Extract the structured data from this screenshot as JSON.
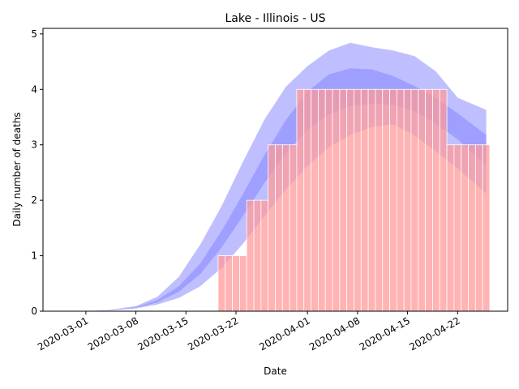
{
  "chart_data": {
    "type": "bar",
    "title": "Lake - Illinois - US",
    "xlabel": "Date",
    "ylabel": "Daily number of deaths",
    "x_ticks": [
      "2020-03-01",
      "2020-03-08",
      "2020-03-15",
      "2020-03-22",
      "2020-04-01",
      "2020-04-08",
      "2020-04-15",
      "2020-04-22"
    ],
    "x_range": [
      "2020-02-24",
      "2020-04-29"
    ],
    "y_ticks": [
      "0",
      "1",
      "2",
      "3",
      "4",
      "5"
    ],
    "ylim": [
      0,
      5.1
    ],
    "grid": false,
    "bar_color": "#ff9999",
    "band_color": "#8080ff",
    "bars": {
      "dates": [
        "2020-03-20",
        "2020-03-21",
        "2020-03-22",
        "2020-03-23",
        "2020-03-24",
        "2020-03-25",
        "2020-03-26",
        "2020-03-27",
        "2020-03-28",
        "2020-03-29",
        "2020-03-30",
        "2020-03-31",
        "2020-04-01",
        "2020-04-02",
        "2020-04-03",
        "2020-04-04",
        "2020-04-05",
        "2020-04-06",
        "2020-04-07",
        "2020-04-08",
        "2020-04-09",
        "2020-04-10",
        "2020-04-11",
        "2020-04-12",
        "2020-04-13",
        "2020-04-14",
        "2020-04-15",
        "2020-04-16",
        "2020-04-17",
        "2020-04-18",
        "2020-04-19",
        "2020-04-20",
        "2020-04-21",
        "2020-04-22",
        "2020-04-23",
        "2020-04-24",
        "2020-04-25",
        "2020-04-26"
      ],
      "values": [
        1,
        1,
        1,
        1,
        2,
        2,
        2,
        3,
        3,
        3,
        3,
        4,
        4,
        4,
        4,
        4,
        4,
        4,
        4,
        4,
        4,
        4,
        4,
        4,
        4,
        4,
        4,
        4,
        4,
        4,
        4,
        4,
        3,
        3,
        3,
        3,
        3,
        3
      ]
    },
    "bands": {
      "dates": [
        "2020-02-24",
        "2020-03-01",
        "2020-03-04",
        "2020-03-08",
        "2020-03-11",
        "2020-03-14",
        "2020-03-17",
        "2020-03-20",
        "2020-03-23",
        "2020-03-26",
        "2020-03-29",
        "2020-04-01",
        "2020-04-04",
        "2020-04-07",
        "2020-04-10",
        "2020-04-13",
        "2020-04-16",
        "2020-04-19",
        "2020-04-22",
        "2020-04-26"
      ],
      "outer_lower": [
        0,
        0,
        0.01,
        0.05,
        0.12,
        0.24,
        0.45,
        0.78,
        1.22,
        1.72,
        2.2,
        2.62,
        2.96,
        3.18,
        3.32,
        3.37,
        3.17,
        2.88,
        2.57,
        2.12
      ],
      "outer_upper": [
        0,
        0,
        0.02,
        0.09,
        0.26,
        0.62,
        1.2,
        1.9,
        2.7,
        3.46,
        4.05,
        4.42,
        4.7,
        4.84,
        4.76,
        4.7,
        4.6,
        4.32,
        3.85,
        3.63
      ],
      "inner_lower": [
        0,
        0,
        0.01,
        0.06,
        0.16,
        0.35,
        0.67,
        1.15,
        1.72,
        2.32,
        2.85,
        3.27,
        3.55,
        3.7,
        3.74,
        3.72,
        3.6,
        3.38,
        3.1,
        2.63
      ],
      "inner_upper": [
        0,
        0,
        0.01,
        0.07,
        0.2,
        0.45,
        0.86,
        1.45,
        2.12,
        2.82,
        3.45,
        3.96,
        4.27,
        4.38,
        4.36,
        4.24,
        4.06,
        3.84,
        3.57,
        3.18
      ]
    }
  }
}
